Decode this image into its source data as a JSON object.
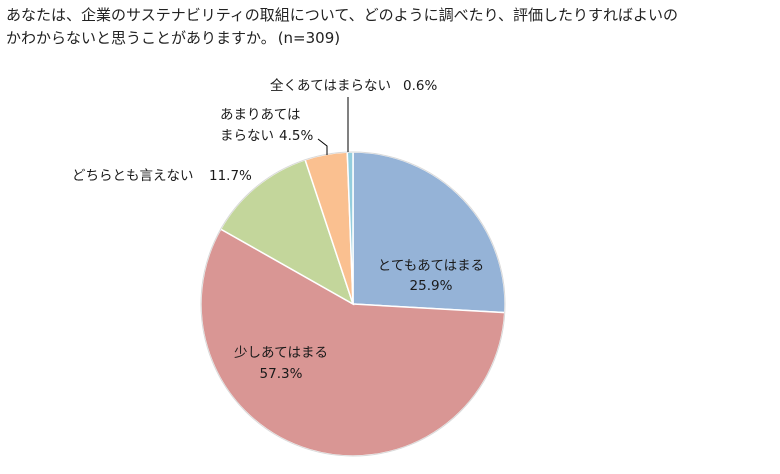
{
  "chart_data": {
    "type": "pie",
    "title_line1": "あなたは、企業のサステナビリティの取組について、どのように調べたり、評価したりすればよいの",
    "title_line2": "かわからないと思うことがありますか。",
    "n_label": "(n=309)",
    "slices": [
      {
        "label": "とてもあてはまる",
        "value": 25.9,
        "value_label": "25.9%",
        "color": "#95b3d7"
      },
      {
        "label": "少しあてはまる",
        "value": 57.3,
        "value_label": "57.3%",
        "color": "#d99694"
      },
      {
        "label": "どちらとも言えない",
        "value": 11.7,
        "value_label": "11.7%",
        "color": "#c3d69b"
      },
      {
        "label_line1": "あまりあては",
        "label_line2": "まらない",
        "value": 4.5,
        "value_label": "4.5%",
        "color": "#fac090"
      },
      {
        "label": "全くあてはまらない",
        "value": 0.6,
        "value_label": "0.6%",
        "color": "#93cddd"
      }
    ]
  }
}
